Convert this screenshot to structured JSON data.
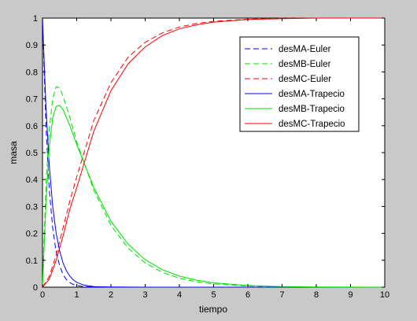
{
  "chart_data": {
    "type": "line",
    "xlabel": "tiempo",
    "ylabel": "masa",
    "xlim": [
      0,
      10
    ],
    "ylim": [
      0,
      1
    ],
    "xticks": [
      "0",
      "1",
      "2",
      "3",
      "4",
      "5",
      "6",
      "7",
      "8",
      "9",
      "10"
    ],
    "yticks": [
      "0",
      "0.1",
      "0.2",
      "0.3",
      "0.4",
      "0.5",
      "0.6",
      "0.7",
      "0.8",
      "0.9",
      "1"
    ],
    "grid": false,
    "legend_position": "top-right",
    "series": [
      {
        "name": "desMA-Euler",
        "color": "#0000ff",
        "dash": "dashed",
        "x": [
          0,
          0.1,
          0.2,
          0.3,
          0.4,
          0.5,
          0.6,
          0.7,
          0.8,
          0.9,
          1.0,
          1.2,
          1.5,
          2,
          3,
          5,
          10
        ],
        "y": [
          1.0,
          0.6,
          0.36,
          0.22,
          0.13,
          0.08,
          0.047,
          0.028,
          0.017,
          0.01,
          0.006,
          0.002,
          0.0005,
          0.0,
          0.0,
          0.0,
          0.0
        ]
      },
      {
        "name": "desMB-Euler",
        "color": "#00e000",
        "dash": "dashed",
        "x": [
          0,
          0.1,
          0.2,
          0.3,
          0.4,
          0.5,
          0.6,
          0.8,
          1.0,
          1.5,
          2,
          2.5,
          3,
          3.5,
          4,
          4.5,
          5,
          6,
          7,
          8,
          10
        ],
        "y": [
          0.0,
          0.38,
          0.59,
          0.7,
          0.745,
          0.74,
          0.71,
          0.63,
          0.54,
          0.36,
          0.23,
          0.145,
          0.09,
          0.055,
          0.033,
          0.02,
          0.012,
          0.004,
          0.001,
          0.0,
          0.0
        ]
      },
      {
        "name": "desMC-Euler",
        "color": "#ff0000",
        "dash": "dashed",
        "x": [
          0,
          0.2,
          0.4,
          0.6,
          0.8,
          1.0,
          1.5,
          2,
          2.5,
          3,
          3.5,
          4,
          4.5,
          5,
          6,
          7,
          8,
          10
        ],
        "y": [
          0.0,
          0.04,
          0.12,
          0.22,
          0.32,
          0.41,
          0.62,
          0.76,
          0.855,
          0.91,
          0.945,
          0.967,
          0.98,
          0.988,
          0.996,
          0.999,
          1.0,
          1.0
        ]
      },
      {
        "name": "desMA-Trapecio",
        "color": "#0000ff",
        "dash": "solid",
        "x": [
          0,
          0.1,
          0.2,
          0.3,
          0.4,
          0.5,
          0.6,
          0.7,
          0.8,
          0.9,
          1.0,
          1.2,
          1.5,
          2,
          3,
          5,
          10
        ],
        "y": [
          1.0,
          0.67,
          0.45,
          0.3,
          0.2,
          0.135,
          0.09,
          0.061,
          0.041,
          0.027,
          0.018,
          0.008,
          0.002,
          0.0005,
          0.0,
          0.0,
          0.0
        ]
      },
      {
        "name": "desMB-Trapecio",
        "color": "#00e000",
        "dash": "solid",
        "x": [
          0,
          0.1,
          0.2,
          0.3,
          0.4,
          0.5,
          0.6,
          0.8,
          1.0,
          1.5,
          2,
          2.5,
          3,
          3.5,
          4,
          4.5,
          5,
          6,
          7,
          8,
          10
        ],
        "y": [
          0.0,
          0.31,
          0.52,
          0.63,
          0.672,
          0.675,
          0.66,
          0.6,
          0.53,
          0.37,
          0.245,
          0.16,
          0.102,
          0.065,
          0.041,
          0.026,
          0.016,
          0.006,
          0.002,
          0.001,
          0.0
        ]
      },
      {
        "name": "desMC-Trapecio",
        "color": "#ff0000",
        "dash": "solid",
        "x": [
          0,
          0.2,
          0.4,
          0.6,
          0.8,
          1.0,
          1.5,
          2,
          2.5,
          3,
          3.5,
          4,
          4.5,
          5,
          6,
          7,
          8,
          10
        ],
        "y": [
          0.0,
          0.03,
          0.1,
          0.19,
          0.29,
          0.37,
          0.58,
          0.73,
          0.83,
          0.893,
          0.935,
          0.96,
          0.975,
          0.985,
          0.995,
          0.998,
          1.0,
          1.0
        ]
      }
    ]
  }
}
